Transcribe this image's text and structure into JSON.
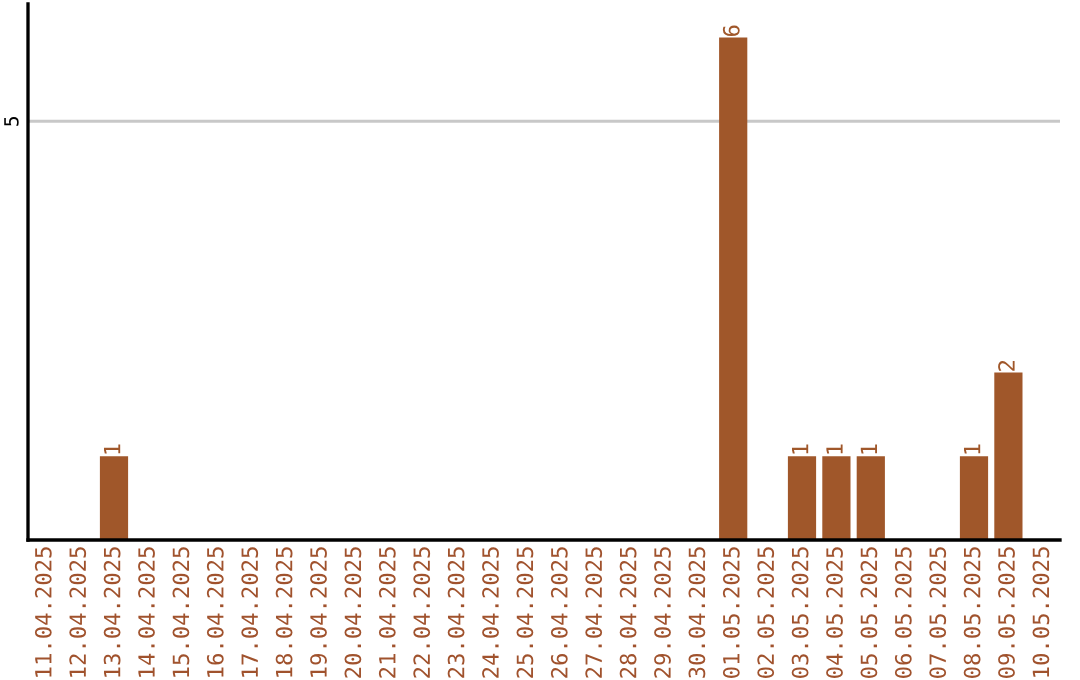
{
  "chart_data": {
    "type": "bar",
    "categories": [
      "11.04.2025",
      "12.04.2025",
      "13.04.2025",
      "14.04.2025",
      "15.04.2025",
      "16.04.2025",
      "17.04.2025",
      "18.04.2025",
      "19.04.2025",
      "20.04.2025",
      "21.04.2025",
      "22.04.2025",
      "23.04.2025",
      "24.04.2025",
      "25.04.2025",
      "26.04.2025",
      "27.04.2025",
      "28.04.2025",
      "29.04.2025",
      "30.04.2025",
      "01.05.2025",
      "02.05.2025",
      "03.05.2025",
      "04.05.2025",
      "05.05.2025",
      "06.05.2025",
      "07.05.2025",
      "08.05.2025",
      "09.05.2025",
      "10.05.2025"
    ],
    "values": [
      0,
      0,
      1,
      0,
      0,
      0,
      0,
      0,
      0,
      0,
      0,
      0,
      0,
      0,
      0,
      0,
      0,
      0,
      0,
      0,
      6,
      0,
      1,
      1,
      1,
      0,
      0,
      1,
      2,
      0
    ],
    "value_labels": [
      null,
      null,
      "1",
      null,
      null,
      null,
      null,
      null,
      null,
      null,
      null,
      null,
      null,
      null,
      null,
      null,
      null,
      null,
      null,
      null,
      "6",
      null,
      "1",
      "1",
      "1",
      null,
      null,
      "1",
      "2",
      null
    ],
    "color": "#a0572a",
    "ylim": [
      0,
      6.4
    ],
    "yticks": [
      5
    ],
    "grid": "y",
    "legend": false
  }
}
